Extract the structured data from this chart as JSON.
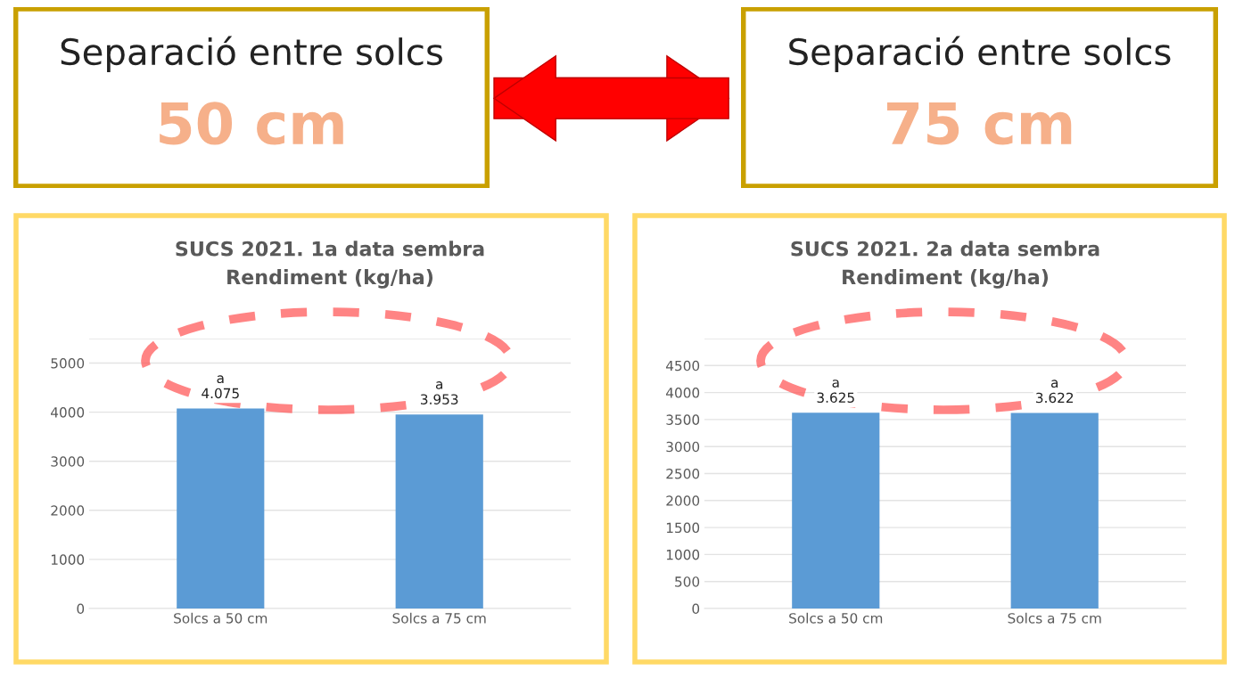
{
  "chart_data": [
    {
      "type": "other",
      "title": "Separació entre solcs",
      "annotations": [
        "50 cm"
      ]
    },
    {
      "type": "other",
      "title": "Separació entre solcs",
      "annotations": [
        "75 cm"
      ]
    },
    {
      "type": "bar",
      "title": "SUCS 2021. 1a data sembra",
      "subtitle": "Rendiment (kg/ha)",
      "categories": [
        "Solcs a 50 cm",
        "Solcs a 75 cm"
      ],
      "values": [
        4075,
        3953
      ],
      "value_labels": [
        "a\n4.075",
        "a\n3.953"
      ],
      "color": "#5b9bd5",
      "ylim": [
        0,
        5500
      ],
      "yticks": [
        0,
        1000,
        2000,
        3000,
        4000,
        5000,
        {
          "value": 5500,
          "label": null
        }
      ],
      "grid": "y"
    },
    {
      "type": "bar",
      "title": "SUCS 2021. 2a data sembra",
      "subtitle": "Rendiment (kg/ha)",
      "categories": [
        "Solcs a 50 cm",
        "Solcs a 75 cm"
      ],
      "values": [
        3625,
        3622
      ],
      "value_labels": [
        "a\n3.625",
        "a\n3.622"
      ],
      "color": "#5b9bd5",
      "ylim": [
        0,
        5000
      ],
      "yticks": [
        0,
        500,
        1000,
        1500,
        2000,
        2500,
        3000,
        3500,
        4000,
        4500,
        {
          "value": 5000,
          "label": null
        }
      ],
      "grid": "y"
    }
  ]
}
